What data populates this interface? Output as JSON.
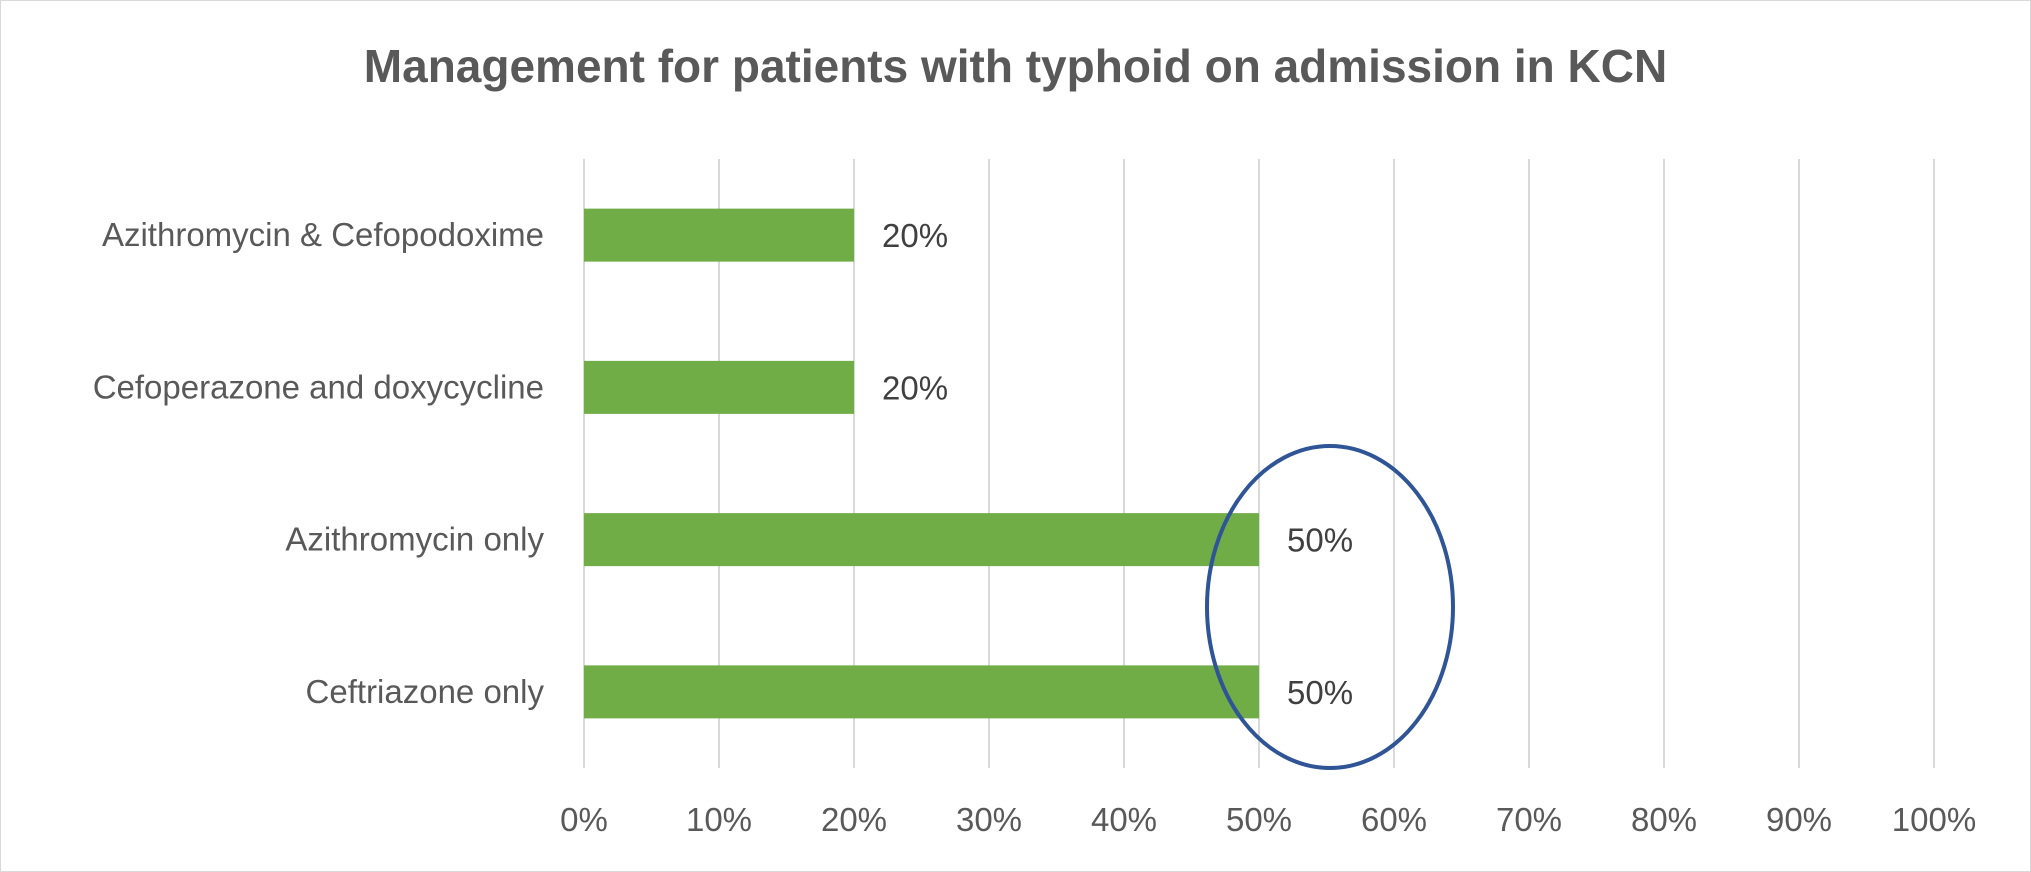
{
  "chart_data": {
    "type": "bar",
    "orientation": "horizontal",
    "title": "Management for patients with typhoid on admission in KCN",
    "categories": [
      "Azithromycin & Cefopodoxime",
      "Cefoperazone and doxycycline",
      "Azithromycin only",
      "Ceftriazone only"
    ],
    "values": [
      20,
      20,
      50,
      50
    ],
    "data_labels": [
      "20%",
      "20%",
      "50%",
      "50%"
    ],
    "xlim": [
      0,
      100
    ],
    "x_ticks": [
      "0%",
      "10%",
      "20%",
      "30%",
      "40%",
      "50%",
      "60%",
      "70%",
      "80%",
      "90%",
      "100%"
    ],
    "grid": "vertical",
    "legend": "none",
    "bar_color": "#70ad47",
    "annotation": {
      "shape": "ellipse",
      "color": "#2f5597",
      "encloses": [
        "Azithromycin only",
        "Ceftriazone only"
      ]
    }
  }
}
